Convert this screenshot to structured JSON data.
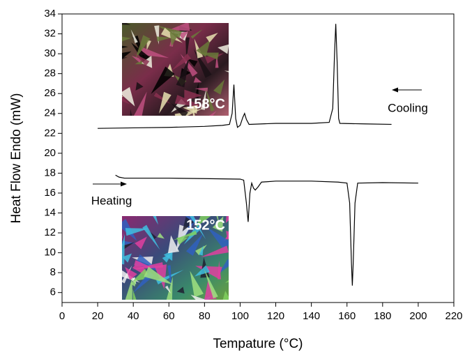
{
  "chart_data": {
    "type": "line",
    "x_label": "Tempature (°C)",
    "y_label": "Heat Flow Endo (mW)",
    "xlim": [
      0,
      220
    ],
    "xticks": [
      0,
      20,
      40,
      60,
      80,
      100,
      120,
      140,
      160,
      180,
      200,
      220
    ],
    "ylim": [
      5,
      34
    ],
    "yticks": [
      6,
      8,
      10,
      12,
      14,
      16,
      18,
      20,
      22,
      24,
      26,
      28,
      30,
      32,
      34
    ],
    "series": [
      {
        "name": "Cooling",
        "color": "#000000",
        "x": [
          20,
          40,
          60,
          80,
          90,
          94,
          95.5,
          96.5,
          97.5,
          98.5,
          100,
          101.5,
          102.5,
          103.5,
          105,
          120,
          140,
          150,
          152,
          153,
          153.7,
          154.5,
          155.3,
          156,
          170,
          185
        ],
        "values": [
          22.5,
          22.55,
          22.6,
          22.7,
          22.8,
          22.9,
          24,
          26.9,
          23.5,
          22.6,
          22.8,
          23.6,
          24.0,
          23.4,
          22.9,
          23.0,
          23.0,
          23.1,
          24.5,
          30,
          33.0,
          29,
          23.5,
          23.0,
          22.95,
          22.9
        ]
      },
      {
        "name": "Heating",
        "color": "#000000",
        "x": [
          30,
          32,
          35,
          60,
          80,
          100,
          102,
          103.5,
          104.5,
          105.5,
          106.5,
          107.5,
          108.5,
          110,
          112,
          120,
          140,
          155,
          160,
          161.5,
          162.5,
          163,
          163.5,
          164.5,
          166,
          180,
          200
        ],
        "values": [
          17.8,
          17.6,
          17.5,
          17.5,
          17.45,
          17.4,
          17.3,
          15,
          13.1,
          16,
          17.0,
          16.5,
          16.3,
          16.6,
          17.1,
          17.2,
          17.2,
          17.1,
          17.0,
          15,
          9,
          6.7,
          9,
          15,
          17.0,
          17.05,
          17.0
        ]
      }
    ],
    "annotations": [
      "158°C",
      "152°C"
    ]
  }
}
